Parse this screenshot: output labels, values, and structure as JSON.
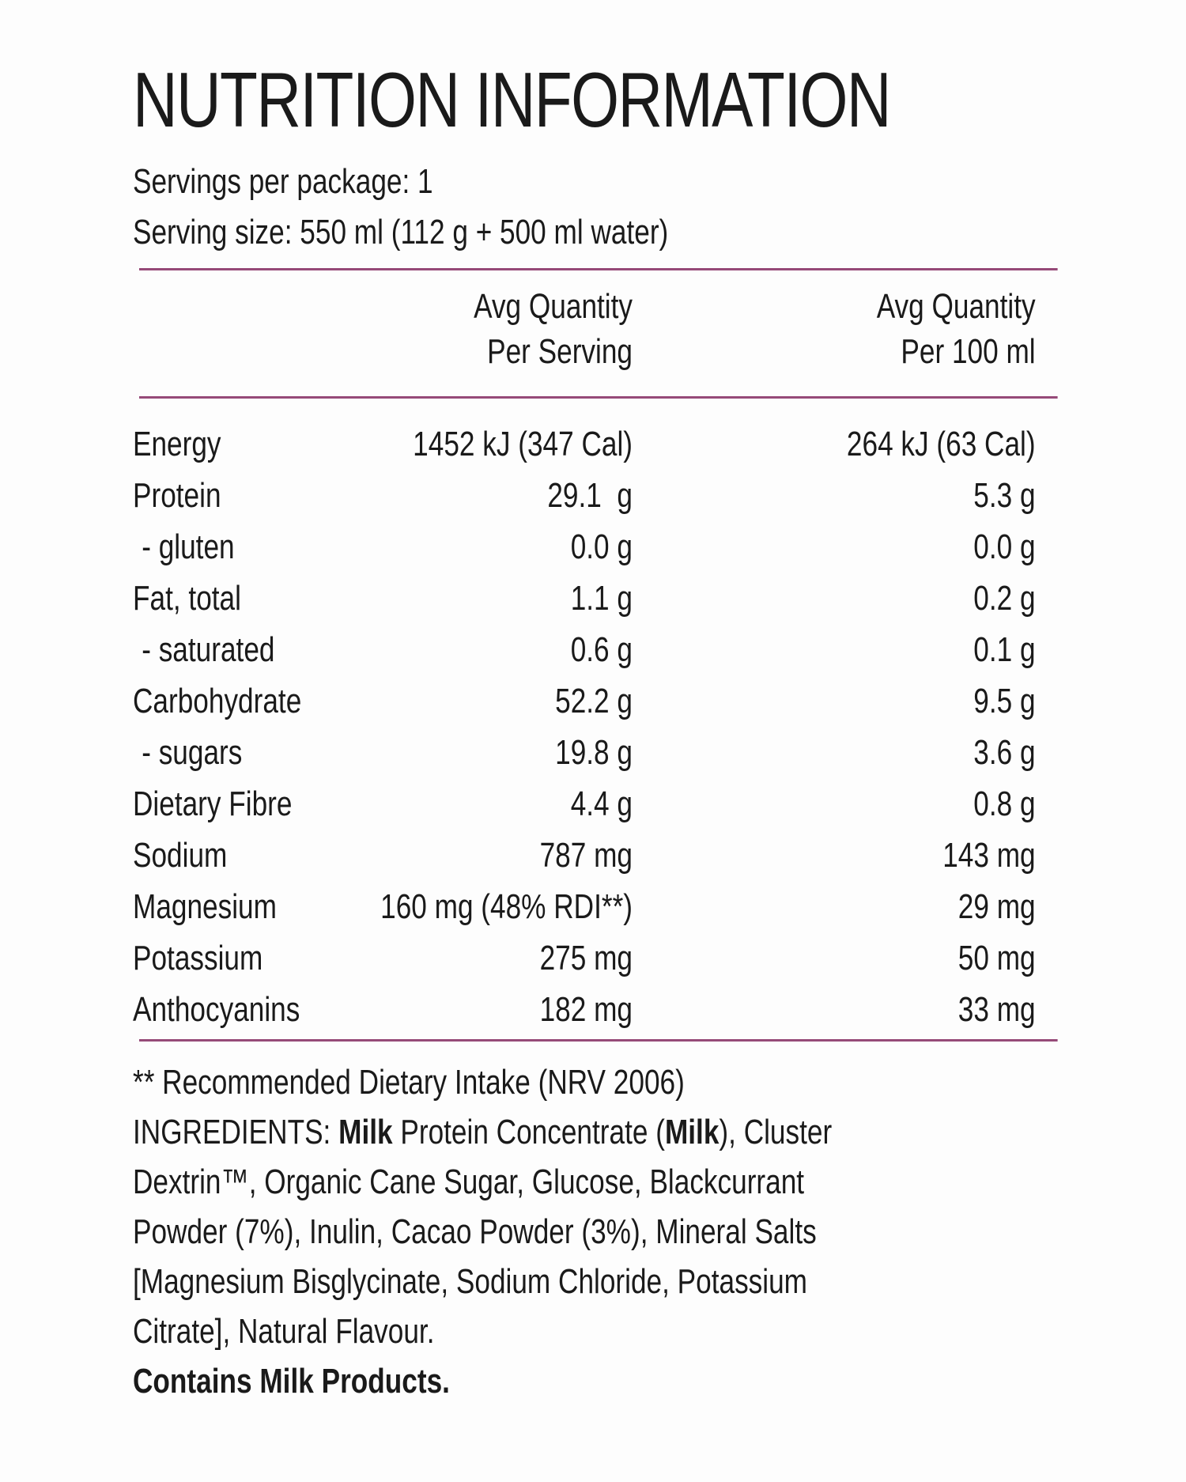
{
  "title": "NUTRITION INFORMATION",
  "servings_line": "Servings per package: 1",
  "serving_size_line": "Serving size: 550 ml (112 g + 500 ml water)",
  "colors": {
    "divider": "#964a78",
    "text": "#1a1a1a",
    "background": "#fdfdfd"
  },
  "table": {
    "headers": {
      "per_serving": {
        "line1": "Avg Quantity",
        "line2": "Per Serving"
      },
      "per_100ml": {
        "line1": "Avg Quantity",
        "line2": "Per 100 ml"
      }
    },
    "rows": [
      {
        "label": "Energy",
        "per_serving": "1452 kJ (347 Cal)",
        "per_100ml": "264 kJ (63 Cal)",
        "sub": false
      },
      {
        "label": "Protein",
        "per_serving": "29.1  g",
        "per_100ml": "5.3 g",
        "sub": false
      },
      {
        "label": "- gluten",
        "per_serving": "0.0 g",
        "per_100ml": "0.0 g",
        "sub": true
      },
      {
        "label": "Fat, total",
        "per_serving": "1.1 g",
        "per_100ml": "0.2 g",
        "sub": false
      },
      {
        "label": "- saturated",
        "per_serving": "0.6 g",
        "per_100ml": "0.1 g",
        "sub": true
      },
      {
        "label": "Carbohydrate",
        "per_serving": "52.2 g",
        "per_100ml": "9.5 g",
        "sub": false
      },
      {
        "label": "- sugars",
        "per_serving": "19.8 g",
        "per_100ml": "3.6 g",
        "sub": true
      },
      {
        "label": "Dietary Fibre",
        "per_serving": "4.4 g",
        "per_100ml": "0.8 g",
        "sub": false
      },
      {
        "label": "Sodium",
        "per_serving": "787 mg",
        "per_100ml": "143 mg",
        "sub": false
      },
      {
        "label": "Magnesium",
        "per_serving": "160 mg (48% RDI**)",
        "per_100ml": "29 mg",
        "sub": false
      },
      {
        "label": "Potassium",
        "per_serving": "275 mg",
        "per_100ml": "50 mg",
        "sub": false
      },
      {
        "label": "Anthocyanins",
        "per_serving": "182 mg",
        "per_100ml": "33 mg",
        "sub": false
      }
    ]
  },
  "footer": {
    "rdi_note": "** Recommended Dietary Intake (NRV 2006)",
    "ingredients_lines": [
      [
        {
          "t": "INGREDIENTS: "
        },
        {
          "t": "Milk",
          "b": true
        },
        {
          "t": " Protein Concentrate ("
        },
        {
          "t": "Milk",
          "b": true
        },
        {
          "t": "), Cluster"
        }
      ],
      [
        {
          "t": "Dextrin™, Organic Cane Sugar, Glucose, Blackcurrant"
        }
      ],
      [
        {
          "t": "Powder (7%), Inulin, Cacao Powder (3%), Mineral Salts"
        }
      ],
      [
        {
          "t": "[Magnesium Bisglycinate, Sodium Chloride, Potassium"
        }
      ],
      [
        {
          "t": "Citrate], Natural Flavour."
        }
      ]
    ],
    "contains": "Contains Milk Products."
  }
}
